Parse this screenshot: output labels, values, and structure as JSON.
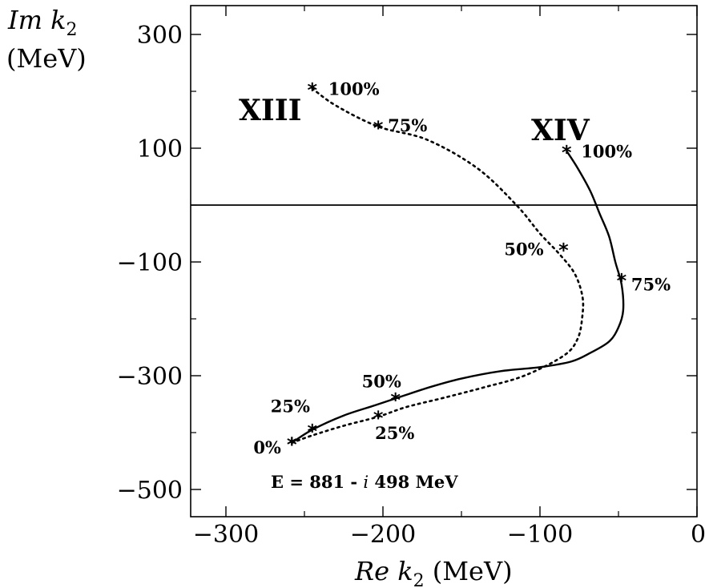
{
  "chart_data": {
    "type": "line",
    "xlabel": {
      "name": "Re k",
      "sub": "2",
      "unit": " (MeV)"
    },
    "ylabel": {
      "name": "Im k",
      "sub": "2",
      "unit": "(MeV)"
    },
    "xlim": [
      -325,
      0
    ],
    "ylim": [
      -545,
      350
    ],
    "xticks": [
      -300,
      -200,
      -100,
      0
    ],
    "yticks": [
      300,
      100,
      -100,
      -300,
      -500
    ],
    "xtick_labels": [
      "−300",
      "−200",
      "−100",
      "0"
    ],
    "ytick_labels": [
      "300",
      "100",
      "−100",
      "−300",
      "−500"
    ],
    "hline_y": 0,
    "grid": false,
    "annotation": {
      "prefix": "E = 881 - ",
      "italic": "i",
      "suffix": " 498 MeV"
    },
    "series": [
      {
        "name": "XIII",
        "style": "dotted",
        "x": [
          -258,
          -245,
          -225,
          -203,
          -185,
          -160,
          -135,
          -110,
          -85,
          -76,
          -73,
          -73,
          -78,
          -88,
          -100,
          -115,
          -140,
          -172,
          -203,
          -230,
          -245
        ],
        "y": [
          -418,
          -405,
          -388,
          -372,
          -355,
          -338,
          -320,
          -300,
          -265,
          -235,
          -195,
          -160,
          -120,
          -85,
          -50,
          0,
          65,
          115,
          138,
          175,
          205
        ],
        "points": [
          {
            "x": -258,
            "y": -418,
            "label": "0%"
          },
          {
            "x": -203,
            "y": -372,
            "label": "25%"
          },
          {
            "x": -85,
            "y": -77,
            "label": "50%"
          },
          {
            "x": -203,
            "y": 138,
            "label": "75%"
          },
          {
            "x": -245,
            "y": 205,
            "label": "100%"
          }
        ]
      },
      {
        "name": "XIV",
        "style": "solid",
        "x": [
          -258,
          -245,
          -225,
          -205,
          -192,
          -170,
          -150,
          -125,
          -100,
          -80,
          -68,
          -56,
          -50,
          -47,
          -48,
          -52,
          -56,
          -62,
          -68,
          -76,
          -83
        ],
        "y": [
          -418,
          -395,
          -370,
          -352,
          -340,
          -320,
          -305,
          -292,
          -285,
          -275,
          -260,
          -240,
          -215,
          -185,
          -140,
          -100,
          -55,
          -15,
          25,
          65,
          95
        ],
        "points": [
          {
            "x": -258,
            "y": -418,
            "label": ""
          },
          {
            "x": -245,
            "y": -395,
            "label": "25%"
          },
          {
            "x": -192,
            "y": -340,
            "label": "50%"
          },
          {
            "x": -48,
            "y": -130,
            "label": "75%"
          },
          {
            "x": -83,
            "y": 95,
            "label": "100%"
          }
        ]
      }
    ]
  }
}
